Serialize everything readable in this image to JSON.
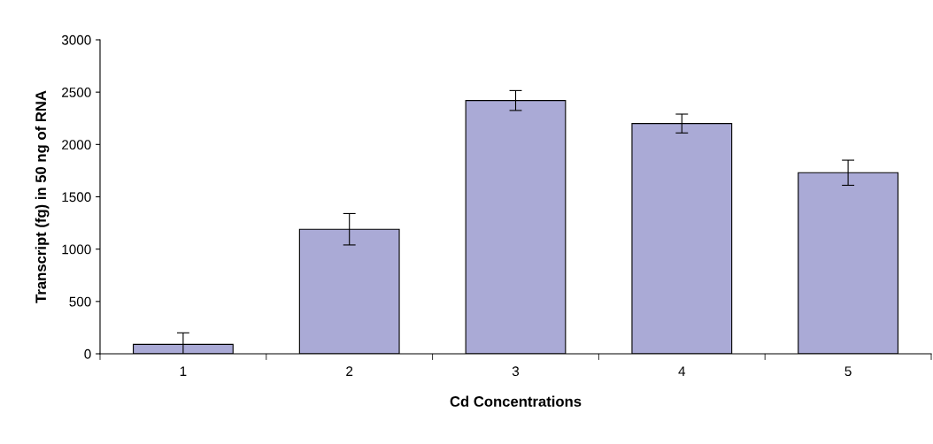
{
  "chart_data": {
    "type": "bar",
    "xlabel": "Cd Concentrations",
    "ylabel": "Transcript (fg) in 50 ng of RNA",
    "categories": [
      "1",
      "2",
      "3",
      "4",
      "5"
    ],
    "values": [
      90,
      1190,
      2420,
      2200,
      1730
    ],
    "errors": [
      110,
      150,
      95,
      90,
      120
    ],
    "color": "#aaaad6",
    "ylim": [
      0,
      3000
    ],
    "yticks": [
      0,
      500,
      1000,
      1500,
      2000,
      2500,
      3000
    ],
    "grid": false,
    "legend": false
  }
}
